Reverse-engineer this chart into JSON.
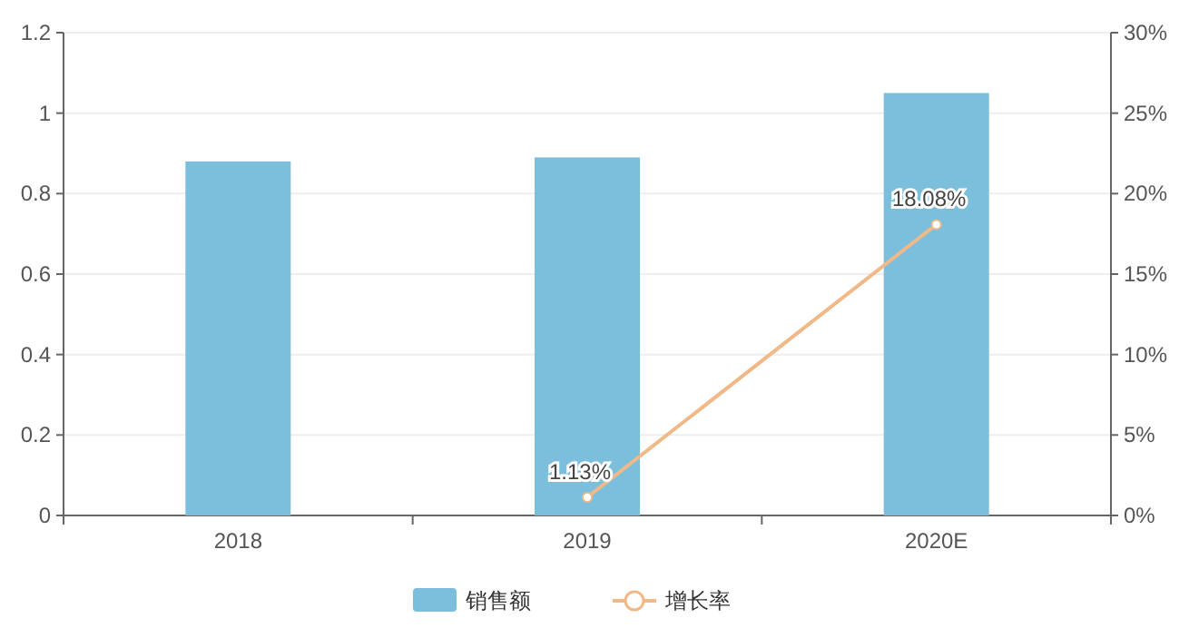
{
  "chart_data": {
    "type": "bar",
    "categories": [
      "2018",
      "2019",
      "2020E"
    ],
    "series": [
      {
        "name": "销售额",
        "color": "#7bbfdc",
        "values": [
          0.88,
          0.89,
          1.05
        ]
      },
      {
        "name": "增长率",
        "type": "line",
        "axis": "y2",
        "color": "#f0b987",
        "marker": "circle",
        "values": [
          null,
          1.13,
          18.08
        ],
        "value_labels": [
          null,
          "1.13%",
          "18.08%"
        ]
      }
    ],
    "ylim": [
      0,
      1.2
    ],
    "yticks": [
      0,
      0.2,
      0.4,
      0.6,
      0.8,
      1,
      1.2
    ],
    "y2lim": [
      0,
      30
    ],
    "y2ticks": [
      {
        "value": 0,
        "label": "0%"
      },
      {
        "value": 5,
        "label": "5%"
      },
      {
        "value": 10,
        "label": "10%"
      },
      {
        "value": 15,
        "label": "15%"
      },
      {
        "value": 20,
        "label": "20%"
      },
      {
        "value": 25,
        "label": "25%"
      },
      {
        "value": 30,
        "label": "30%"
      }
    ],
    "grid": "y",
    "legend": "bottom"
  }
}
